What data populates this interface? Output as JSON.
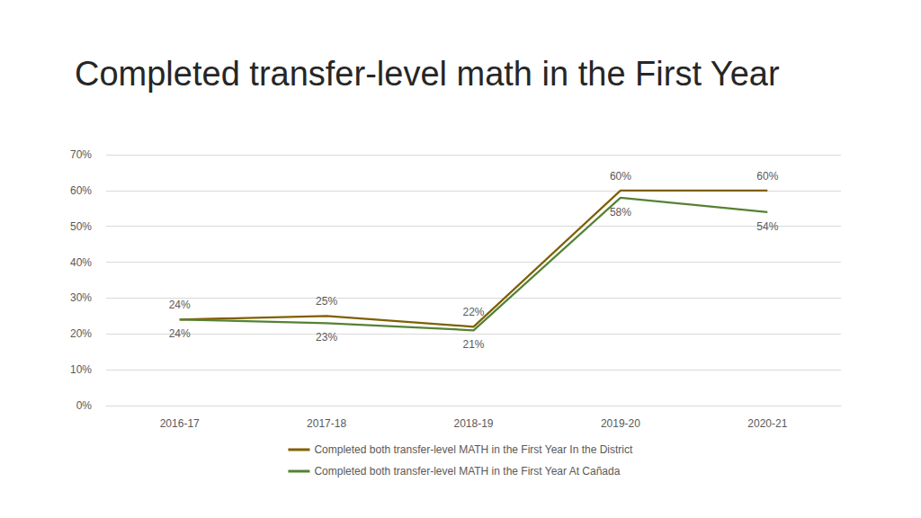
{
  "chart_data": {
    "type": "line",
    "title": "Completed transfer-level math in the First Year",
    "categories": [
      "2016-17",
      "2017-18",
      "2018-19",
      "2019-20",
      "2020-21"
    ],
    "series": [
      {
        "name": "Completed both transfer-level MATH in the First Year In the District",
        "color": "#7f6000",
        "values": [
          24,
          25,
          22,
          60,
          60
        ],
        "value_labels": [
          "24%",
          "25%",
          "22%",
          "60%",
          "60%"
        ]
      },
      {
        "name": "Completed both transfer-level MATH in the First Year At Cañada",
        "color": "#548235",
        "values": [
          24,
          23,
          21,
          58,
          54
        ],
        "value_labels": [
          "24%",
          "23%",
          "21%",
          "58%",
          "54%"
        ]
      }
    ],
    "ylim": [
      0,
      70
    ],
    "yticks": [
      {
        "value": 0,
        "label": "0%"
      },
      {
        "value": 10,
        "label": "10%"
      },
      {
        "value": 20,
        "label": "20%"
      },
      {
        "value": 30,
        "label": "30%"
      },
      {
        "value": 40,
        "label": "40%"
      },
      {
        "value": 50,
        "label": "50%"
      },
      {
        "value": 60,
        "label": "60%"
      },
      {
        "value": 70,
        "label": "70%"
      }
    ],
    "grid": true,
    "legend": "bottom",
    "data_labels": true
  }
}
